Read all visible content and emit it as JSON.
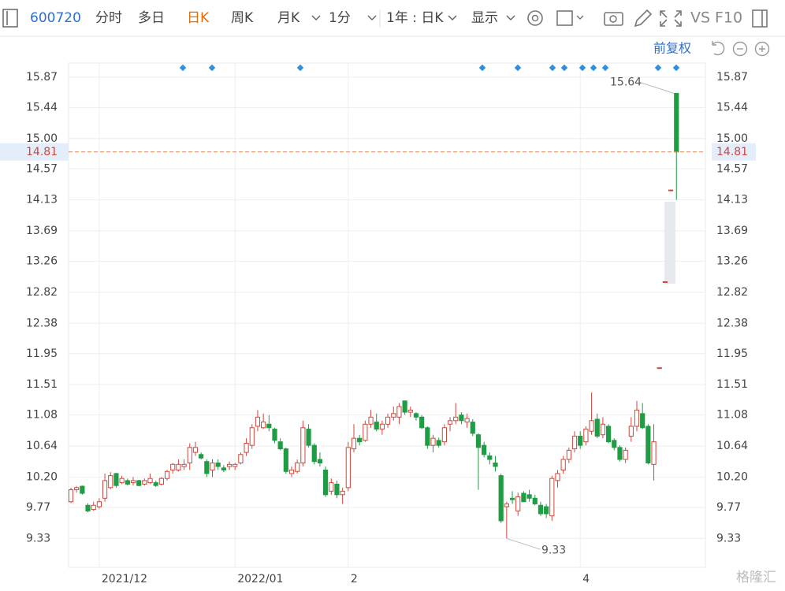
{
  "toolbar": {
    "code": "600720",
    "tabs": [
      "分时",
      "多日",
      "日K",
      "周K",
      "月K",
      "1分"
    ],
    "period": "1年 : 日K",
    "display": "显示",
    "vs": "VS",
    "f10": "F10",
    "adjust": "前复权"
  },
  "watermark": "格隆汇",
  "chart_data": {
    "type": "candlestick",
    "categories": [
      null,
      null,
      null,
      null,
      null,
      "2021/12",
      null,
      null,
      null,
      null,
      null,
      null,
      null,
      null,
      null,
      null,
      null,
      null,
      null,
      null,
      null,
      null,
      null,
      null,
      null,
      null,
      null,
      null,
      null,
      "2022/01",
      null,
      null,
      null,
      null,
      null,
      null,
      null,
      null,
      null,
      null,
      null,
      null,
      null,
      null,
      null,
      null,
      null,
      null,
      null,
      "2",
      null,
      null,
      null,
      null,
      null,
      null,
      null,
      null,
      null,
      null,
      null,
      null,
      null,
      null,
      null,
      null,
      null,
      null,
      null,
      null,
      null,
      null,
      null,
      null,
      null,
      null,
      null,
      null,
      null,
      null,
      null,
      null,
      null,
      null,
      null,
      null,
      null,
      null,
      null,
      null,
      "4",
      null,
      null,
      null,
      null,
      null,
      null,
      null,
      null,
      null,
      null,
      null,
      null,
      null,
      null,
      null,
      null,
      null
    ],
    "open": [
      9.85,
      10.02,
      10.07,
      9.8,
      9.74,
      9.78,
      9.9,
      10.05,
      10.25,
      10.12,
      10.15,
      10.12,
      10.15,
      10.1,
      10.12,
      10.12,
      10.1,
      10.18,
      10.3,
      10.3,
      10.35,
      10.4,
      10.55,
      10.52,
      10.42,
      10.3,
      10.4,
      10.33,
      10.35,
      10.35,
      10.4,
      10.55,
      10.65,
      10.92,
      10.9,
      10.95,
      10.88,
      10.7,
      10.6,
      10.25,
      10.28,
      10.4,
      10.88,
      10.65,
      10.45,
      10.3,
      10.0,
      10.1,
      9.95,
      10.05,
      10.6,
      10.75,
      10.72,
      10.95,
      10.98,
      10.88,
      10.95,
      11.05,
      11.05,
      11.28,
      11.12,
      11.1,
      11.05,
      10.9,
      10.65,
      10.72,
      10.7,
      10.95,
      11.0,
      11.08,
      10.98,
      10.98,
      10.8,
      10.65,
      10.5,
      10.4,
      10.22,
      9.78,
      9.9,
      9.72,
      9.97,
      9.95,
      9.9,
      9.8,
      9.78,
      9.65,
      10.15,
      10.3,
      10.45,
      10.6,
      10.78,
      10.7,
      10.85,
      11.02,
      10.8,
      10.92,
      10.72,
      10.62,
      10.45,
      10.78,
      10.92,
      11.1,
      10.92,
      10.38,
      11.75,
      12.97,
      14.27,
      15.64
    ],
    "high": [
      10.05,
      10.07,
      10.08,
      9.83,
      9.85,
      9.9,
      10.25,
      10.27,
      10.26,
      10.22,
      10.18,
      10.2,
      10.16,
      10.18,
      10.25,
      10.15,
      10.2,
      10.3,
      10.4,
      10.45,
      10.45,
      10.68,
      10.7,
      10.55,
      10.45,
      10.45,
      10.45,
      10.37,
      10.42,
      10.4,
      10.55,
      10.75,
      10.95,
      11.15,
      11.1,
      11.08,
      10.9,
      10.75,
      10.62,
      10.35,
      10.45,
      11.0,
      10.95,
      10.68,
      10.55,
      10.35,
      10.18,
      10.15,
      10.05,
      10.7,
      10.95,
      10.8,
      11.0,
      11.15,
      11.1,
      11.0,
      11.1,
      11.2,
      11.25,
      11.28,
      11.2,
      11.12,
      11.08,
      10.92,
      10.8,
      10.76,
      10.95,
      11.05,
      11.25,
      11.12,
      11.1,
      11.02,
      10.82,
      10.7,
      10.55,
      10.5,
      10.25,
      9.85,
      10.0,
      9.98,
      10.0,
      10.02,
      9.95,
      9.85,
      9.82,
      10.22,
      10.3,
      10.5,
      10.62,
      10.85,
      10.85,
      10.92,
      11.4,
      11.1,
      11.05,
      10.95,
      10.75,
      10.65,
      10.62,
      11.05,
      11.28,
      11.25,
      10.95,
      10.95,
      11.75,
      12.97,
      14.27,
      15.64
    ],
    "low": [
      9.83,
      9.98,
      9.95,
      9.7,
      9.72,
      9.75,
      9.85,
      10.03,
      10.05,
      10.1,
      10.08,
      10.08,
      10.07,
      10.08,
      10.1,
      10.06,
      10.08,
      10.15,
      10.25,
      10.28,
      10.3,
      10.3,
      10.5,
      10.45,
      10.2,
      10.2,
      10.3,
      10.27,
      10.3,
      10.3,
      10.38,
      10.5,
      10.6,
      10.85,
      10.88,
      10.85,
      10.68,
      10.58,
      10.25,
      10.2,
      10.25,
      10.35,
      10.62,
      10.38,
      10.35,
      9.92,
      9.95,
      9.9,
      9.82,
      10.0,
      10.55,
      10.65,
      10.7,
      10.9,
      10.85,
      10.8,
      10.9,
      11.0,
      10.95,
      11.08,
      11.05,
      11.0,
      10.88,
      10.6,
      10.55,
      10.62,
      10.65,
      10.85,
      10.95,
      10.95,
      10.9,
      10.78,
      10.02,
      10.48,
      10.38,
      10.28,
      9.55,
      9.33,
      9.82,
      9.65,
      9.85,
      9.85,
      9.8,
      9.65,
      9.62,
      9.58,
      10.05,
      10.25,
      10.4,
      10.55,
      10.6,
      10.65,
      10.8,
      10.75,
      10.75,
      10.68,
      10.58,
      10.42,
      10.4,
      10.7,
      10.85,
      10.88,
      10.38,
      10.15,
      11.75,
      12.97,
      14.27,
      14.13
    ],
    "close": [
      10.02,
      10.05,
      9.97,
      9.72,
      9.8,
      9.85,
      10.15,
      10.22,
      10.08,
      10.18,
      10.1,
      10.15,
      10.08,
      10.15,
      10.18,
      10.08,
      10.18,
      10.28,
      10.38,
      10.38,
      10.38,
      10.62,
      10.62,
      10.47,
      10.25,
      10.4,
      10.35,
      10.3,
      10.38,
      10.38,
      10.52,
      10.68,
      10.9,
      11.05,
      10.98,
      10.9,
      10.72,
      10.6,
      10.28,
      10.3,
      10.4,
      10.9,
      10.65,
      10.42,
      10.4,
      9.95,
      10.12,
      9.95,
      10.0,
      10.62,
      10.75,
      10.7,
      10.95,
      11.05,
      10.88,
      10.95,
      11.05,
      11.1,
      11.2,
      11.12,
      11.15,
      11.05,
      10.9,
      10.65,
      10.75,
      10.65,
      10.9,
      11.0,
      11.05,
      11.0,
      11.03,
      10.82,
      10.62,
      10.52,
      10.45,
      10.35,
      9.58,
      9.82,
      9.88,
      9.92,
      9.85,
      9.9,
      9.82,
      9.68,
      9.68,
      10.18,
      10.25,
      10.45,
      10.58,
      10.78,
      10.65,
      10.88,
      11.0,
      10.78,
      10.95,
      10.7,
      10.62,
      10.45,
      10.58,
      10.92,
      11.15,
      10.9,
      10.4,
      10.7,
      11.75,
      12.97,
      14.27,
      14.81
    ],
    "up_color": "#d0463c",
    "down_color": "#1f9d45",
    "ylim": [
      8.92,
      16.07
    ],
    "yticks": [
      15.87,
      15.44,
      {
        "value": 15,
        "label": "15.00"
      },
      14.57,
      14.13,
      13.69,
      13.26,
      12.82,
      12.38,
      11.95,
      11.51,
      11.08,
      10.64,
      {
        "value": 10.2,
        "label": "10.20"
      },
      9.77,
      9.33
    ],
    "grid": true,
    "last_price": 14.81,
    "max_label": 15.64,
    "min_label": 9.33
  }
}
